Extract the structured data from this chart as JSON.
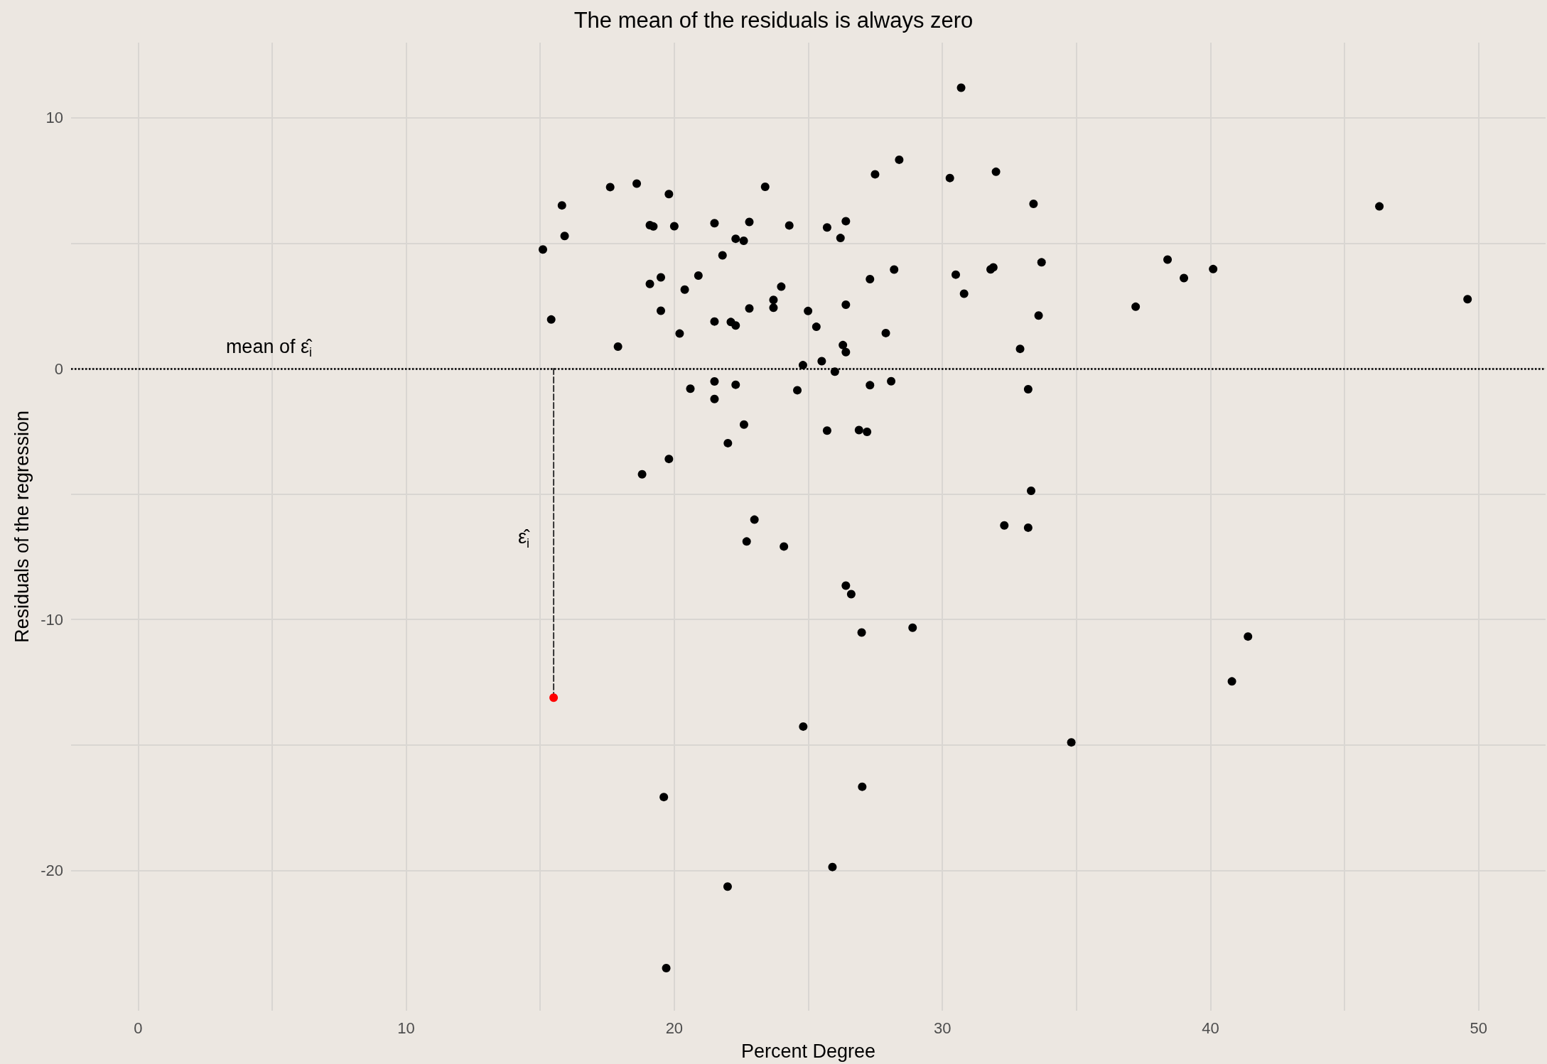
{
  "chart_data": {
    "type": "scatter",
    "title": "The mean of the residuals is always zero",
    "xlabel": "Percent Degree",
    "ylabel": "Residuals of the regression",
    "xlim": [
      -2.5,
      52.5
    ],
    "xticks": [
      0,
      {
        "value": 5,
        "label": null
      },
      10,
      {
        "value": 15,
        "label": null
      },
      20,
      {
        "value": 25,
        "label": null
      },
      30,
      {
        "value": 35,
        "label": null
      },
      40,
      {
        "value": 45,
        "label": null
      },
      50
    ],
    "ylim": [
      -25.6,
      13
    ],
    "yticks": [
      -20,
      {
        "value": -15,
        "label": null
      },
      -10,
      {
        "value": -5,
        "label": null
      },
      0,
      {
        "value": 5,
        "label": null
      },
      10
    ],
    "grid": true,
    "marker": "circle",
    "series": [
      {
        "color": "#000000",
        "x": [
          15.1,
          15.81,
          15.91,
          15.41,
          17.61,
          18.6,
          19.8,
          19.09,
          19.22,
          20.0,
          21.5,
          22.8,
          23.39,
          24.29,
          25.7,
          26.4,
          26.2,
          27.49,
          28.39,
          30.28,
          22.29,
          22.59,
          21.8,
          19.5,
          19.09,
          20.9,
          20.39,
          23.99,
          23.7,
          23.7,
          22.8,
          19.5,
          21.5,
          22.11,
          22.29,
          20.2,
          17.9,
          24.99,
          25.3,
          26.4,
          27.3,
          28.2,
          27.89,
          26.29,
          26.4,
          25.5,
          24.8,
          25.99,
          21.5,
          22.29,
          20.6,
          24.59,
          21.5,
          27.3,
          28.09,
          30.7,
          32.0,
          33.4,
          46.3,
          30.5,
          31.8,
          31.9,
          33.7,
          30.81,
          38.4,
          39.01,
          40.1,
          37.21,
          49.59,
          33.59,
          32.9,
          33.2,
          22.6,
          22.0,
          19.8,
          18.8,
          25.7,
          26.89,
          27.19,
          22.99,
          22.7,
          24.09,
          26.4,
          26.6,
          26.99,
          28.89,
          33.31,
          32.31,
          33.2,
          41.4,
          40.8,
          34.81,
          24.81,
          19.61,
          27.01,
          25.9,
          21.99,
          19.7
        ],
        "values": [
          4.75,
          6.51,
          5.29,
          1.96,
          7.24,
          7.38,
          6.96,
          5.72,
          5.67,
          5.68,
          5.8,
          5.85,
          7.25,
          5.71,
          5.63,
          5.88,
          5.21,
          7.75,
          8.33,
          7.6,
          5.18,
          5.1,
          4.52,
          3.64,
          3.38,
          3.71,
          3.15,
          3.27,
          2.74,
          2.43,
          2.4,
          2.31,
          1.88,
          1.86,
          1.72,
          1.4,
          0.88,
          2.3,
          1.67,
          2.55,
          3.57,
          3.95,
          1.42,
          0.94,
          0.66,
          0.3,
          0.14,
          -0.12,
          -0.51,
          -0.64,
          -0.8,
          -0.86,
          -1.21,
          -0.66,
          -0.5,
          11.2,
          7.85,
          6.57,
          6.47,
          3.75,
          3.96,
          4.04,
          4.24,
          2.99,
          4.35,
          3.61,
          3.97,
          2.47,
          2.77,
          2.12,
          0.79,
          -0.82,
          -2.23,
          -2.97,
          -3.6,
          -4.21,
          -2.47,
          -2.45,
          -2.52,
          -6.02,
          -6.89,
          -7.09,
          -8.65,
          -8.99,
          -10.52,
          -10.33,
          -4.87,
          -6.25,
          -6.34,
          -10.68,
          -12.47,
          -14.9,
          -14.27,
          -17.08,
          -16.67,
          -19.87,
          -20.65,
          -23.9
        ]
      },
      {
        "type": "line",
        "color": "#333333",
        "line_style": "dashed",
        "marker": "none",
        "x": [
          15.5,
          15.5
        ],
        "values": [
          0,
          -13.12
        ]
      },
      {
        "color": "#ff0000",
        "x": [
          15.5
        ],
        "values": [
          -13.12
        ]
      }
    ],
    "ref_lines": [
      {
        "axis": "y",
        "value": 0,
        "label": "mean of ε̂$_{i}$",
        "line_style": "dotted",
        "color": "#000000"
      }
    ],
    "annotations": [
      {
        "text": "ε̂$_{i}$",
        "x": 15.5,
        "y": -6.56
      }
    ]
  }
}
